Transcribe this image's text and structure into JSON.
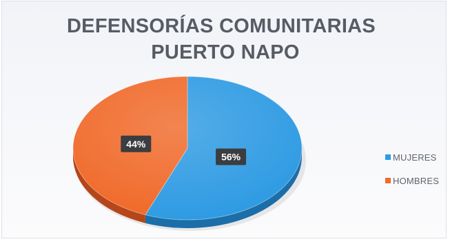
{
  "title": {
    "line1": "DEFENSORÍAS COMUNITARIAS",
    "line2": "PUERTO NAPO"
  },
  "colors": {
    "mujeres": "#2f9be3",
    "hombres": "#f06a2a",
    "mujeres_side": "#1c6ea8",
    "hombres_side": "#b5461a",
    "label_bg": "#3b3d40"
  },
  "chart_data": {
    "type": "pie",
    "title": "DEFENSORÍAS COMUNITARIAS PUERTO NAPO",
    "slices": [
      {
        "label": "MUJERES",
        "value": 56,
        "display": "56%"
      },
      {
        "label": "HOMBRES",
        "value": 44,
        "display": "44%"
      }
    ],
    "legend_position": "right",
    "style": "3d"
  },
  "legend": {
    "items": [
      {
        "label": "MUJERES"
      },
      {
        "label": "HOMBRES"
      }
    ]
  }
}
